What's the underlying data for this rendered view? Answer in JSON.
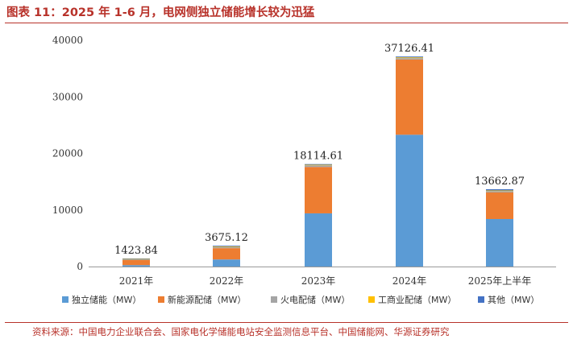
{
  "page": {
    "title": "图表 11：2025 年 1-6 月，电网侧独立储能增长较为迅猛",
    "source": "资料来源：中国电力企业联合会、国家电化学储能电站安全监测信息平台、中国储能网、华源证券研究"
  },
  "chart_data": {
    "type": "bar",
    "stacked": true,
    "title": "",
    "xlabel": "",
    "ylabel": "",
    "ylim": [
      0,
      40000
    ],
    "yticks": [
      0,
      10000,
      20000,
      30000,
      40000
    ],
    "grid": false,
    "legend_position": "bottom",
    "categories": [
      "2021年",
      "2022年",
      "2023年",
      "2024年",
      "2025年上半年"
    ],
    "totals": [
      "1423.84",
      "3675.12",
      "18114.61",
      "37126.41",
      "13662.87"
    ],
    "series": [
      {
        "name": "独立储能（MW）",
        "color": "#5b9bd5",
        "values": [
          250,
          1250,
          9400,
          23300,
          8400
        ]
      },
      {
        "name": "新能源配储（MW）",
        "color": "#ed7d31",
        "values": [
          900,
          2000,
          8200,
          13300,
          4700
        ]
      },
      {
        "name": "火电配储（MW）",
        "color": "#a5a5a5",
        "values": [
          150,
          250,
          300,
          250,
          250
        ]
      },
      {
        "name": "工商业配储（MW）",
        "color": "#ffc000",
        "values": [
          50,
          60,
          100,
          130,
          100
        ]
      },
      {
        "name": "其他（MW）",
        "color": "#4472c4",
        "values": [
          73.84,
          115.12,
          114.61,
          146.41,
          212.87
        ]
      }
    ]
  }
}
